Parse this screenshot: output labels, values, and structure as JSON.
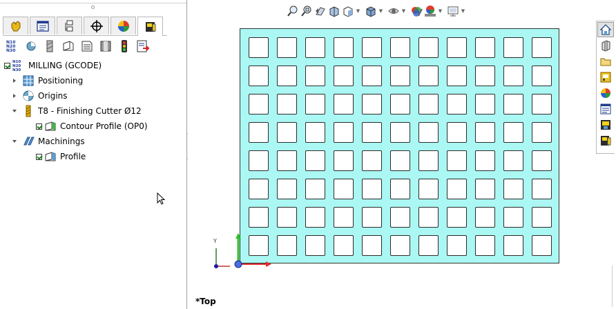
{
  "tree": {
    "root_label": "MILLING (GCODE)",
    "items": [
      {
        "label": "Positioning"
      },
      {
        "label": "Origins"
      },
      {
        "label": "T8 - Finishing Cutter Ø12"
      },
      {
        "label": "Contour Profile  (OP0)"
      },
      {
        "label": "Machinings"
      },
      {
        "label": "Profile"
      }
    ],
    "nc_icon_text": [
      "N10",
      "N20",
      "N30"
    ]
  },
  "tabs": [
    {
      "icon": "part-manager-icon"
    },
    {
      "icon": "property-manager-icon"
    },
    {
      "icon": "configuration-manager-icon"
    },
    {
      "icon": "dimxpert-icon"
    },
    {
      "icon": "display-manager-icon"
    },
    {
      "icon": "cam-manager-icon"
    }
  ],
  "command_icons": [
    "nc-program-icon",
    "origin-icon",
    "stock-icon",
    "machining-face-icon",
    "report-icon",
    "simulation-icon",
    "traffic-light-icon",
    "post-process-icon"
  ],
  "view_toolbar_icons": [
    "zoom-to-fit-icon",
    "zoom-to-area-icon",
    "previous-view-icon",
    "section-view-icon",
    "view-orientation-icon",
    "display-style-icon",
    "hide-show-icon",
    "edit-appearance-icon",
    "apply-scene-icon",
    "view-settings-icon"
  ],
  "task_pane_icons": [
    "home-icon",
    "design-library-icon",
    "file-explorer-icon",
    "view-palette-icon",
    "appearances-icon",
    "custom-properties-icon",
    "cam-library-icon",
    "cam-tools-icon"
  ],
  "viewport": {
    "view_name": "*Top",
    "triad_y_label": "Y",
    "pocket_rows": 8,
    "pocket_cols": 11,
    "part_color": "#aaf7f3"
  }
}
